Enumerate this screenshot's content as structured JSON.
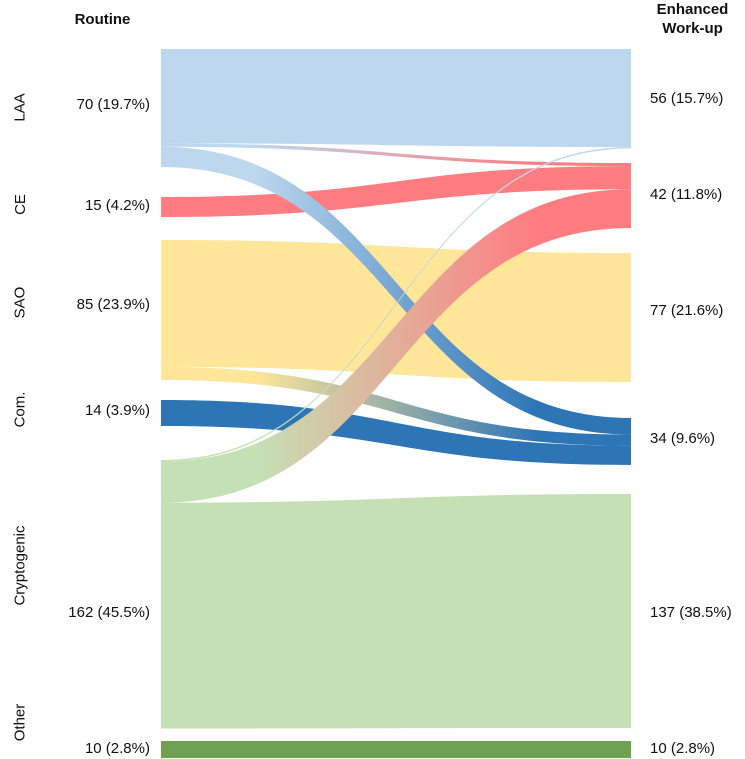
{
  "headers": {
    "left": "Routine",
    "right_line1": "Enhanced",
    "right_line2": "Work-up"
  },
  "categories": [
    {
      "key": "laa",
      "name": "LAA",
      "color": "#bdd7ee"
    },
    {
      "key": "ce",
      "name": "CE",
      "color": "#ff7c80"
    },
    {
      "key": "sao",
      "name": "SAO",
      "color": "#ffe699"
    },
    {
      "key": "com",
      "name": "Com.",
      "color": "#2e75b6"
    },
    {
      "key": "cryptogenic",
      "name": "Cryptogenic",
      "color": "#c5e0b4"
    },
    {
      "key": "other",
      "name": "Other",
      "color": "#70a052"
    }
  ],
  "routine": [
    {
      "category": "LAA",
      "count": 70,
      "label": "70 (19.7%)"
    },
    {
      "category": "CE",
      "count": 15,
      "label": "15 (4.2%)"
    },
    {
      "category": "SAO",
      "count": 85,
      "label": "85 (23.9%)"
    },
    {
      "category": "Com.",
      "count": 14,
      "label": "14 (3.9%)"
    },
    {
      "category": "Cryptogenic",
      "count": 162,
      "label": "162 (45.5%)"
    },
    {
      "category": "Other",
      "count": 10,
      "label": "10 (2.8%)"
    }
  ],
  "enhanced": [
    {
      "category": "LAA",
      "count": 56,
      "label": "56 (15.7%)"
    },
    {
      "category": "CE",
      "count": 42,
      "label": "42 (11.8%)"
    },
    {
      "category": "SAO",
      "count": 77,
      "label": "77 (21.6%)"
    },
    {
      "category": "Com.",
      "count": 34,
      "label": "34 (9.6%)"
    },
    {
      "category": "Cryptogenic",
      "count": 137,
      "label": "137 (38.5%)"
    },
    {
      "category": "Other",
      "count": 10,
      "label": "10 (2.8%)"
    }
  ],
  "flows": [
    {
      "from": "LAA",
      "to": "LAA",
      "count": 56
    },
    {
      "from": "LAA",
      "to": "CE",
      "count": 2
    },
    {
      "from": "LAA",
      "to": "Com.",
      "count": 12
    },
    {
      "from": "CE",
      "to": "CE",
      "count": 15
    },
    {
      "from": "SAO",
      "to": "SAO",
      "count": 77
    },
    {
      "from": "SAO",
      "to": "Com.",
      "count": 8
    },
    {
      "from": "Com.",
      "to": "Com.",
      "count": 14
    },
    {
      "from": "Cryptogenic",
      "to": "LAA",
      "count": 0.5
    },
    {
      "from": "Cryptogenic",
      "to": "CE",
      "count": 25
    },
    {
      "from": "Cryptogenic",
      "to": "Cryptogenic",
      "count": 137
    },
    {
      "from": "Other",
      "to": "Other",
      "count": 10
    }
  ]
}
